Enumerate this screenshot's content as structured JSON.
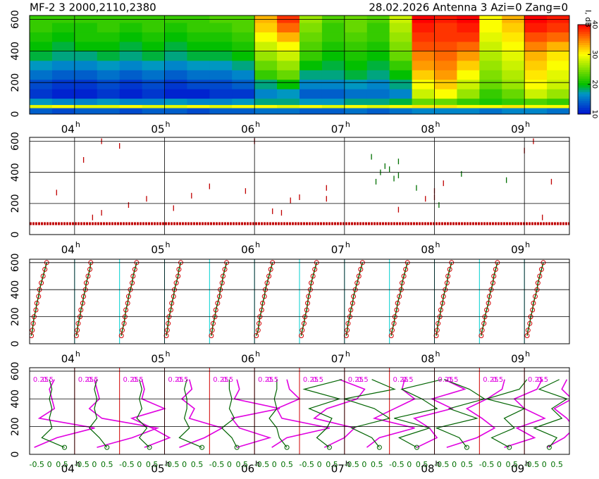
{
  "header": {
    "left": "MF-2  3 2000,2110,2380",
    "right": "28.02.2026 Antenna 3 Azi=0 Zang=0"
  },
  "chart_data": [
    {
      "type": "heatmap",
      "xlim": [
        3.5,
        9.5
      ],
      "ylim": [
        0,
        625
      ],
      "yticks": [
        0,
        200,
        400,
        600
      ],
      "grid": true,
      "hour_suffix": "h",
      "xticks": [
        {
          "value": 4,
          "label": "04"
        },
        {
          "value": 5,
          "label": "05"
        },
        {
          "value": 6,
          "label": "06"
        },
        {
          "value": 7,
          "label": "07"
        },
        {
          "value": 8,
          "label": "08"
        },
        {
          "value": 9,
          "label": "09"
        }
      ],
      "x_edges": [
        3.5,
        3.75,
        4.0,
        4.25,
        4.5,
        4.75,
        5.0,
        5.25,
        5.5,
        5.75,
        6.0,
        6.25,
        6.5,
        6.75,
        7.0,
        7.25,
        7.5,
        7.75,
        8.0,
        8.25,
        8.5,
        8.75,
        9.0,
        9.25,
        9.5
      ],
      "y_edges": [
        0,
        40,
        60,
        100,
        160,
        220,
        280,
        340,
        400,
        460,
        520,
        580,
        625
      ],
      "values": [
        [
          14,
          13,
          14,
          14,
          13,
          14,
          14,
          13,
          14,
          14,
          15,
          15,
          14,
          14,
          15,
          14,
          15,
          16,
          16,
          16,
          15,
          16,
          16,
          15
        ],
        [
          29,
          30,
          29,
          29,
          30,
          29,
          29,
          30,
          29,
          30,
          30,
          29,
          30,
          29,
          30,
          29,
          30,
          31,
          31,
          30,
          30,
          31,
          30,
          30
        ],
        [
          17,
          16,
          16,
          17,
          16,
          16,
          17,
          16,
          16,
          17,
          18,
          18,
          17,
          17,
          18,
          18,
          19,
          24,
          24,
          22,
          21,
          22,
          23,
          22
        ],
        [
          12,
          11,
          11,
          12,
          11,
          12,
          11,
          11,
          12,
          12,
          16,
          17,
          14,
          14,
          15,
          15,
          16,
          28,
          30,
          26,
          22,
          24,
          28,
          26
        ],
        [
          13,
          12,
          12,
          13,
          12,
          13,
          12,
          13,
          13,
          14,
          18,
          20,
          16,
          16,
          17,
          16,
          18,
          30,
          32,
          28,
          24,
          26,
          30,
          28
        ],
        [
          15,
          14,
          14,
          15,
          14,
          15,
          14,
          15,
          15,
          16,
          22,
          24,
          18,
          18,
          19,
          18,
          20,
          32,
          34,
          30,
          25,
          27,
          31,
          29
        ],
        [
          17,
          16,
          16,
          17,
          16,
          17,
          16,
          17,
          17,
          18,
          24,
          26,
          20,
          19,
          20,
          19,
          22,
          34,
          35,
          32,
          26,
          28,
          32,
          30
        ],
        [
          19,
          18,
          18,
          19,
          18,
          19,
          18,
          19,
          19,
          20,
          26,
          28,
          22,
          20,
          21,
          20,
          24,
          35,
          36,
          34,
          27,
          29,
          33,
          31
        ],
        [
          20,
          19,
          20,
          20,
          19,
          20,
          19,
          20,
          20,
          21,
          28,
          30,
          23,
          21,
          22,
          21,
          25,
          37,
          37,
          36,
          28,
          30,
          35,
          33
        ],
        [
          21,
          20,
          21,
          21,
          20,
          21,
          20,
          21,
          21,
          22,
          30,
          33,
          24,
          22,
          23,
          22,
          26,
          38,
          38,
          38,
          29,
          31,
          37,
          36
        ],
        [
          22,
          21,
          21,
          22,
          21,
          22,
          21,
          22,
          22,
          23,
          32,
          36,
          25,
          22,
          24,
          22,
          27,
          39,
          38,
          39,
          30,
          32,
          39,
          38
        ],
        [
          22,
          22,
          22,
          22,
          22,
          22,
          22,
          22,
          23,
          23,
          33,
          38,
          26,
          23,
          24,
          23,
          28,
          40,
          39,
          40,
          30,
          33,
          40,
          39
        ]
      ],
      "clim": [
        10,
        40
      ],
      "colorbar_ticks": [
        10,
        20,
        30,
        40
      ],
      "colorbar_label": "I, dB"
    },
    {
      "type": "scatter",
      "xlim": [
        3.5,
        9.5
      ],
      "ylim": [
        0,
        625
      ],
      "yticks": [
        0,
        200,
        400,
        600
      ],
      "grid": true,
      "hour_suffix": "h",
      "xticks": [
        {
          "value": 4,
          "label": "04"
        },
        {
          "value": 5,
          "label": "05"
        },
        {
          "value": 6,
          "label": "06"
        },
        {
          "value": 7,
          "label": "07"
        },
        {
          "value": 8,
          "label": "08"
        },
        {
          "value": 9,
          "label": "09"
        }
      ],
      "series": [
        {
          "color": "#c00000",
          "style": "points",
          "x": [
            4.1,
            3.8,
            4.5,
            4.3,
            4.2,
            4.6,
            4.8,
            5.1,
            5.3,
            5.5,
            5.9,
            6.2,
            6.4,
            6.5,
            6.8,
            6.8,
            6.3,
            7.6,
            8.0,
            8.0,
            8.1,
            7.9,
            9.0,
            9.1,
            9.2,
            9.3,
            4.3,
            6.0
          ],
          "values": [
            480,
            270,
            570,
            140,
            110,
            190,
            230,
            170,
            250,
            310,
            280,
            150,
            220,
            240,
            300,
            230,
            140,
            160,
            240,
            280,
            330,
            230,
            540,
            600,
            110,
            340,
            600,
            600
          ]
        },
        {
          "color": "#007000",
          "style": "points",
          "x": [
            7.3,
            7.45,
            7.5,
            7.6,
            7.6,
            7.55,
            7.8,
            8.05,
            8.8,
            8.3,
            7.4,
            7.35
          ],
          "values": [
            500,
            440,
            420,
            470,
            380,
            360,
            300,
            190,
            350,
            390,
            400,
            340
          ]
        },
        {
          "color": "#c00000",
          "style": "line",
          "x": [
            3.5,
            9.5
          ],
          "values": [
            70,
            70
          ]
        }
      ]
    },
    {
      "type": "profiles",
      "xlim": [
        3.5,
        9.5
      ],
      "ylim": [
        0,
        625
      ],
      "yticks": [
        0,
        200,
        400,
        600
      ],
      "grid": true,
      "hour_suffix": "h",
      "xticks": [
        {
          "value": 4,
          "label": "04"
        },
        {
          "value": 5,
          "label": "05"
        },
        {
          "value": 6,
          "label": "06"
        },
        {
          "value": 7,
          "label": "07"
        },
        {
          "value": 8,
          "label": "08"
        },
        {
          "value": 9,
          "label": "09"
        }
      ],
      "starts": [
        3.5,
        4.0,
        4.5,
        5.0,
        5.5,
        6.0,
        6.5,
        7.0,
        7.5,
        8.0,
        8.5,
        9.0
      ],
      "heights": [
        60,
        100,
        150,
        200,
        250,
        300,
        350,
        400,
        450,
        500,
        550,
        600
      ],
      "color": "#d00000",
      "line_color": "#006400",
      "guide_color": "#00d0d0",
      "profiles": [
        [
          0.02,
          0.03,
          0.04,
          0.05,
          0.07,
          0.08,
          0.1,
          0.11,
          0.13,
          0.15,
          0.17,
          0.19
        ],
        [
          0.02,
          0.03,
          0.04,
          0.06,
          0.07,
          0.09,
          0.1,
          0.12,
          0.13,
          0.15,
          0.17,
          0.18
        ],
        [
          0.02,
          0.03,
          0.05,
          0.06,
          0.07,
          0.09,
          0.1,
          0.12,
          0.14,
          0.15,
          0.17,
          0.19
        ],
        [
          0.02,
          0.03,
          0.04,
          0.05,
          0.07,
          0.08,
          0.1,
          0.11,
          0.13,
          0.15,
          0.16,
          0.18
        ],
        [
          0.02,
          0.03,
          0.04,
          0.06,
          0.07,
          0.09,
          0.11,
          0.12,
          0.14,
          0.15,
          0.17,
          0.19
        ],
        [
          0.02,
          0.04,
          0.05,
          0.06,
          0.08,
          0.09,
          0.11,
          0.12,
          0.14,
          0.16,
          0.18,
          0.2
        ],
        [
          0.02,
          0.03,
          0.05,
          0.06,
          0.08,
          0.09,
          0.1,
          0.12,
          0.13,
          0.15,
          0.17,
          0.19
        ],
        [
          0.02,
          0.03,
          0.04,
          0.06,
          0.07,
          0.09,
          0.1,
          0.12,
          0.14,
          0.16,
          0.18,
          0.2
        ],
        [
          0.02,
          0.03,
          0.05,
          0.06,
          0.08,
          0.09,
          0.11,
          0.13,
          0.14,
          0.16,
          0.18,
          0.2
        ],
        [
          0.02,
          0.03,
          0.04,
          0.06,
          0.07,
          0.09,
          0.1,
          0.12,
          0.14,
          0.15,
          0.17,
          0.19
        ],
        [
          0.02,
          0.03,
          0.05,
          0.06,
          0.08,
          0.1,
          0.11,
          0.13,
          0.15,
          0.16,
          0.18,
          0.2
        ],
        [
          0.03,
          0.04,
          0.06,
          0.07,
          0.09,
          0.1,
          0.12,
          0.14,
          0.15,
          0.17,
          0.19,
          0.21
        ]
      ]
    },
    {
      "type": "wind",
      "xlim": [
        3.5,
        9.5
      ],
      "ylim": [
        0,
        625
      ],
      "yticks": [
        0,
        200,
        400,
        600
      ],
      "grid": true,
      "hour_suffix": "h",
      "xticks": [
        {
          "value": 4,
          "label": "04"
        },
        {
          "value": 5,
          "label": "05"
        },
        {
          "value": 6,
          "label": "06"
        },
        {
          "value": 7,
          "label": "07"
        },
        {
          "value": 8,
          "label": "08"
        },
        {
          "value": 9,
          "label": "09"
        }
      ],
      "starts": [
        3.5,
        4.0,
        4.5,
        5.0,
        5.5,
        6.0,
        6.5,
        7.0,
        7.5,
        8.0,
        8.5,
        9.0
      ],
      "heights": [
        50,
        120,
        190,
        260,
        330,
        400,
        470,
        540
      ],
      "wind_ticks": [
        -0.5,
        0,
        0.5
      ],
      "top_ticks": [
        0.25,
        0.5
      ],
      "guide_color": "#d00000",
      "series": [
        {
          "color": "#e000e0",
          "values": [
            [
              -0.6,
              0.3,
              1.8,
              -0.4,
              0.2,
              0.1,
              0.0,
              0.2
            ],
            [
              0.1,
              1.5,
              2.5,
              0.3,
              -0.2,
              0.2,
              0.1,
              0.0
            ],
            [
              0.2,
              1.2,
              0.5,
              -0.3,
              1.0,
              0.1,
              0.2,
              0.1
            ],
            [
              -0.2,
              0.8,
              1.5,
              0.2,
              0.4,
              -0.1,
              0.3,
              0.2
            ],
            [
              0.3,
              1.6,
              0.4,
              0.1,
              2.0,
              0.2,
              0.4,
              0.3
            ],
            [
              -0.1,
              0.5,
              2.2,
              0.3,
              0.1,
              1.0,
              0.6,
              0.5
            ],
            [
              0.2,
              1.0,
              1.4,
              -0.2,
              0.3,
              1.5,
              1.8,
              0.8
            ],
            [
              0.1,
              0.6,
              2.0,
              0.4,
              1.2,
              2.0,
              1.5,
              1.6
            ],
            [
              0.3,
              1.1,
              0.8,
              0.2,
              1.7,
              0.9,
              2.2,
              1.4
            ],
            [
              -0.3,
              0.9,
              1.6,
              1.1,
              0.5,
              1.3,
              1.9,
              2.0
            ],
            [
              0.2,
              1.4,
              0.7,
              1.8,
              1.0,
              0.6,
              1.5,
              1.7
            ],
            [
              0.1,
              0.8,
              1.2,
              0.9,
              0.4,
              1.1,
              0.7,
              0.9
            ]
          ]
        },
        {
          "color": "#006400",
          "values": [
            [
              0.6,
              -0.3,
              0.1,
              0.0,
              0.1,
              0.0,
              0.1,
              0.0
            ],
            [
              0.5,
              0.2,
              -0.2,
              0.1,
              0.0,
              0.1,
              0.0,
              0.1
            ],
            [
              0.4,
              0.0,
              0.3,
              -0.1,
              0.1,
              0.0,
              0.1,
              0.0
            ],
            [
              0.7,
              -0.2,
              0.2,
              0.0,
              0.1,
              0.1,
              0.0,
              0.1
            ],
            [
              0.3,
              0.1,
              -0.3,
              0.2,
              0.0,
              0.1,
              0.0,
              0.0
            ],
            [
              0.5,
              0.2,
              0.1,
              -0.2,
              0.1,
              0.0,
              0.1,
              0.1
            ],
            [
              0.4,
              -0.1,
              0.3,
              0.5,
              -0.4,
              0.8,
              -0.6,
              0.9
            ],
            [
              0.6,
              0.3,
              -0.5,
              1.0,
              0.4,
              -0.8,
              1.2,
              0.3
            ],
            [
              0.3,
              -0.4,
              0.8,
              -0.6,
              1.1,
              0.5,
              -0.3,
              1.3
            ],
            [
              0.5,
              0.2,
              -0.7,
              0.9,
              -0.2,
              1.2,
              0.6,
              -0.4
            ],
            [
              0.4,
              -0.3,
              0.6,
              0.2,
              1.0,
              -0.5,
              0.8,
              1.1
            ],
            [
              0.2,
              0.5,
              -0.4,
              0.7,
              0.3,
              0.9,
              -0.2,
              0.6
            ]
          ]
        }
      ]
    }
  ]
}
